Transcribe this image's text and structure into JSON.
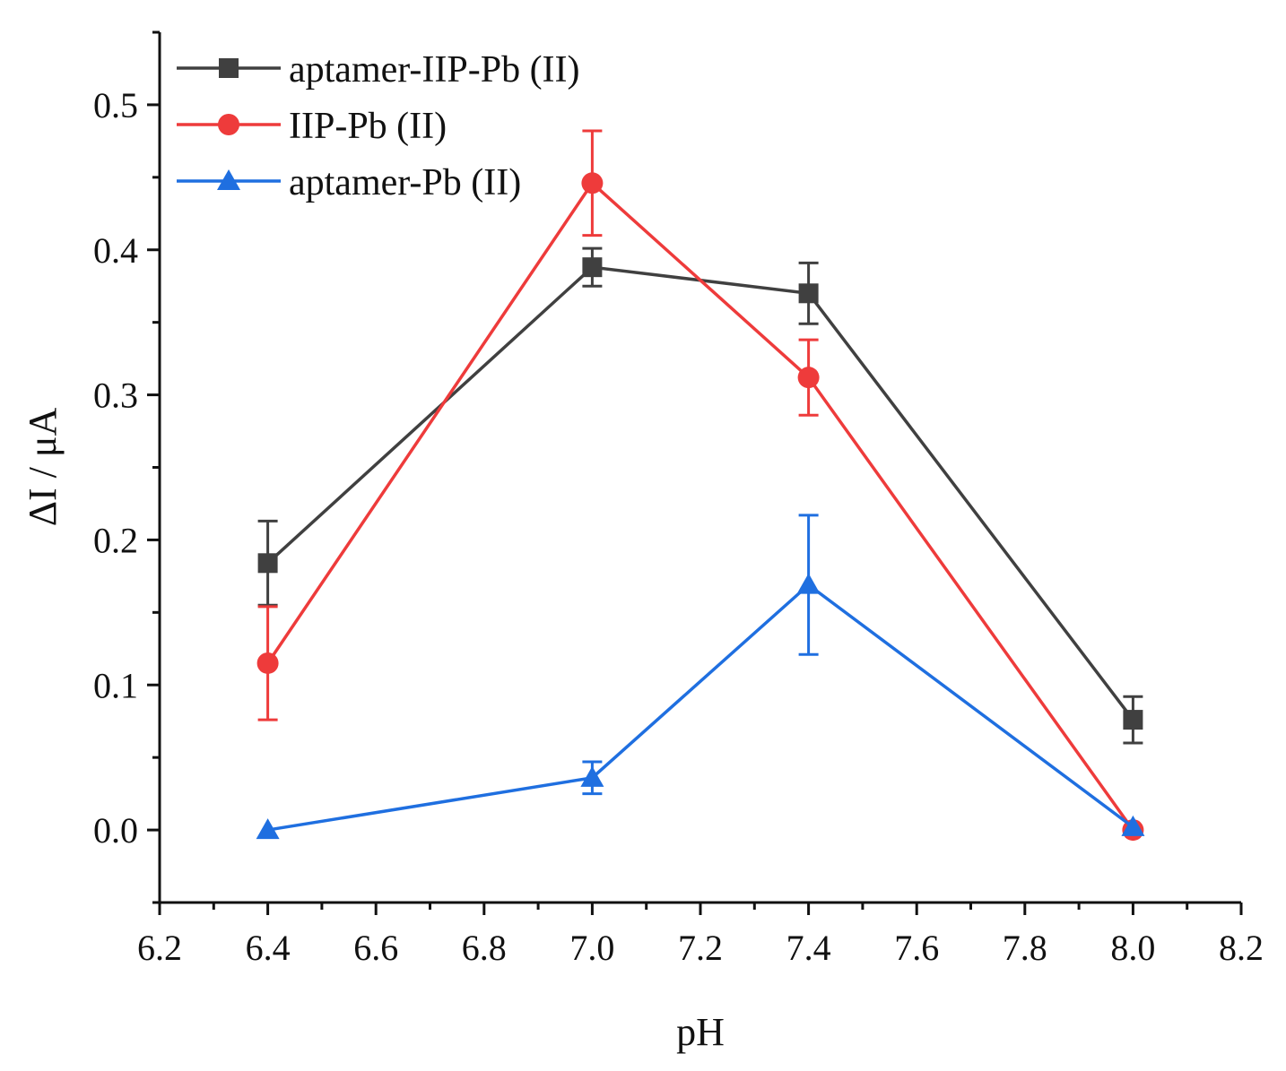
{
  "chart_data": {
    "type": "line",
    "title": "",
    "xlabel": "pH",
    "ylabel": "ΔI / μA",
    "xlim": [
      6.2,
      8.2
    ],
    "ylim": [
      -0.05,
      0.55
    ],
    "xticks": [
      6.2,
      6.4,
      6.6,
      6.8,
      7.0,
      7.2,
      7.4,
      7.6,
      7.8,
      8.0,
      8.2
    ],
    "xtick_labels": [
      "6.2",
      "6.4",
      "6.6",
      "6.8",
      "7.0",
      "7.2",
      "7.4",
      "7.6",
      "7.8",
      "8.0",
      "8.2"
    ],
    "yticks": [
      0.0,
      0.1,
      0.2,
      0.3,
      0.4,
      0.5
    ],
    "ytick_labels": [
      "0.0",
      "0.1",
      "0.2",
      "0.3",
      "0.4",
      "0.5"
    ],
    "grid": false,
    "legend_position": "top-left",
    "x": [
      6.4,
      7.0,
      7.4,
      8.0
    ],
    "series": [
      {
        "name": "aptamer-IIP-Pb (II)",
        "color": "#404040",
        "marker": "square",
        "values": [
          0.184,
          0.388,
          0.37,
          0.076
        ],
        "errors": [
          0.029,
          0.013,
          0.021,
          0.016
        ]
      },
      {
        "name": "IIP-Pb (II)",
        "color": "#ee3b3b",
        "marker": "circle",
        "values": [
          0.115,
          0.446,
          0.312,
          0.0
        ],
        "errors": [
          0.039,
          0.036,
          0.026,
          0.0
        ]
      },
      {
        "name": "aptamer-Pb (II)",
        "color": "#1f6fe0",
        "marker": "triangle",
        "values": [
          0.0,
          0.036,
          0.169,
          0.002
        ],
        "errors": [
          0.0,
          0.011,
          0.048,
          0.0
        ]
      }
    ]
  }
}
